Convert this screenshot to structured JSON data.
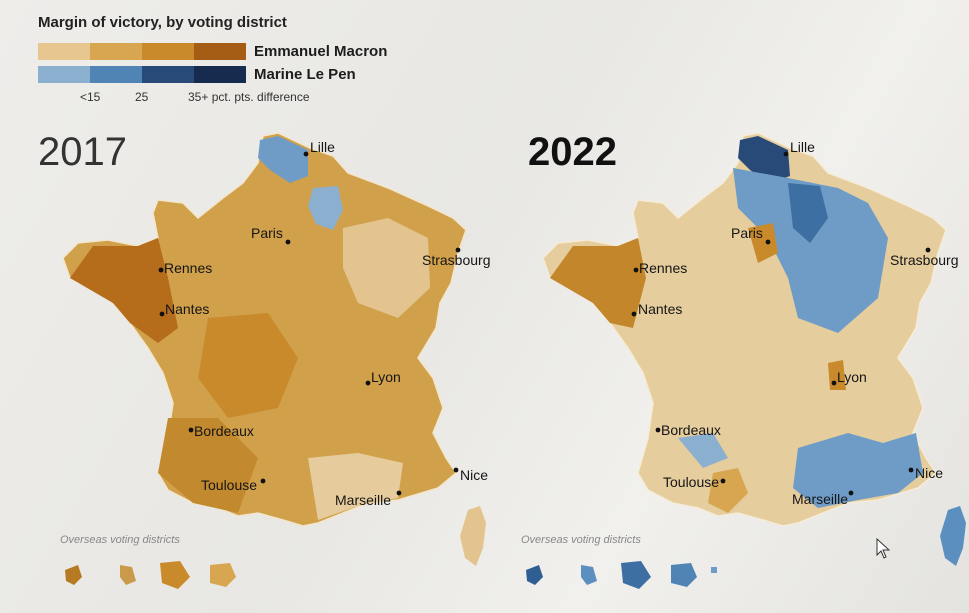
{
  "legend": {
    "title": "Margin of victory, by voting district",
    "macron_label": "Emmanuel Macron",
    "lepen_label": "Marine Le Pen",
    "tick_low": "<15",
    "tick_mid": "25",
    "tick_high": "35+ pct. pts. difference",
    "macron_colors": [
      "#e7c690",
      "#d8a650",
      "#c98a2c",
      "#a55c14"
    ],
    "lepen_colors": [
      "#8bb0cf",
      "#4f84b4",
      "#274a78",
      "#172b4f"
    ]
  },
  "maps": [
    {
      "year": "2017",
      "base_color": "#d1a04a",
      "cities": [
        "Lille",
        "Paris",
        "Strasbourg",
        "Rennes",
        "Nantes",
        "Lyon",
        "Bordeaux",
        "Toulouse",
        "Marseille",
        "Nice"
      ],
      "overseas_label": "Overseas voting districts"
    },
    {
      "year": "2022",
      "base_color": "#e6cd9e",
      "cities": [
        "Lille",
        "Paris",
        "Strasbourg",
        "Rennes",
        "Nantes",
        "Lyon",
        "Bordeaux",
        "Toulouse",
        "Marseille",
        "Nice"
      ],
      "overseas_label": "Overseas voting districts"
    }
  ]
}
